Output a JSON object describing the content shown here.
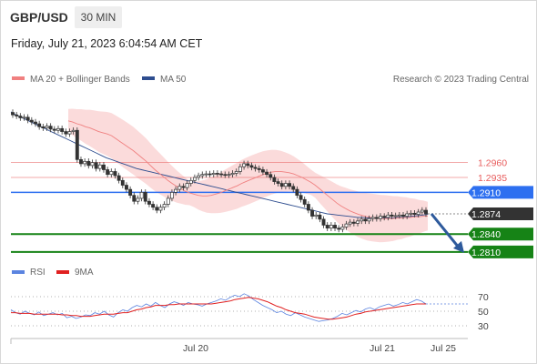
{
  "header": {
    "symbol": "GBP/USD",
    "timeframe": "30 MIN",
    "date": "Friday, July 21, 2023 6:04:54 AM CET"
  },
  "legend": {
    "ma20": "MA 20 + Bollinger Bands",
    "ma50": "MA 50",
    "credit": "Research © 2023 Trading Central",
    "rsi": "RSI",
    "rsi_ma": "9MA"
  },
  "colors": {
    "ma20": "#f08080",
    "bands": "#fbd7d7",
    "ma50": "#2e4d8f",
    "resistance": "#e85c5c",
    "pivot": "#2d6ff0",
    "support": "#168316",
    "last": "#333333",
    "arrow": "#2e5a9c",
    "rsi": "#5b84e0",
    "rsi_ma": "#e02020",
    "up_candle": "#ffffff",
    "down_candle": "#333333"
  },
  "chart_data": [
    {
      "type": "candlestick",
      "levels": [
        {
          "label": "1.2960",
          "value": 1.296,
          "kind": "resistance"
        },
        {
          "label": "1.2935",
          "value": 1.2935,
          "kind": "resistance"
        },
        {
          "label": "1.2910",
          "value": 1.291,
          "kind": "pivot"
        },
        {
          "label": "1.2874",
          "value": 1.2874,
          "kind": "last"
        },
        {
          "label": "1.2840",
          "value": 1.284,
          "kind": "support"
        },
        {
          "label": "1.2810",
          "value": 1.281,
          "kind": "support"
        }
      ],
      "ylim": [
        1.279,
        1.308
      ],
      "x_ticks": [
        "Jul 20",
        "Jul 21",
        "Jul 25"
      ],
      "close": [
        1.304,
        1.3038,
        1.3035,
        1.3036,
        1.3031,
        1.3028,
        1.3025,
        1.302,
        1.3018,
        1.3021,
        1.3016,
        1.3014,
        1.3017,
        1.3012,
        1.3008,
        1.3012,
        1.3014,
        1.2965,
        1.2958,
        1.2962,
        1.2955,
        1.296,
        1.295,
        1.2956,
        1.2948,
        1.294,
        1.2945,
        1.2938,
        1.293,
        1.2922,
        1.2915,
        1.2905,
        1.2895,
        1.29,
        1.291,
        1.2895,
        1.289,
        1.2885,
        1.288,
        1.2885,
        1.289,
        1.29,
        1.291,
        1.2915,
        1.292,
        1.2918,
        1.2925,
        1.293,
        1.2935,
        1.2938,
        1.294,
        1.2941,
        1.294,
        1.2942,
        1.2941,
        1.294,
        1.2939,
        1.294,
        1.2942,
        1.2945,
        1.2953,
        1.2958,
        1.2955,
        1.2952,
        1.295,
        1.2948,
        1.2944,
        1.294,
        1.2935,
        1.2928,
        1.2925,
        1.292,
        1.2925,
        1.292,
        1.2915,
        1.2905,
        1.2898,
        1.289,
        1.288,
        1.287,
        1.2872,
        1.2865,
        1.2855,
        1.285,
        1.2855,
        1.285,
        1.2848,
        1.2852,
        1.2857,
        1.286,
        1.2858,
        1.2862,
        1.2865,
        1.2862,
        1.2866,
        1.2868,
        1.2866,
        1.287,
        1.2868,
        1.2872,
        1.287,
        1.2871,
        1.2872,
        1.287,
        1.2874,
        1.2875,
        1.2873,
        1.2877,
        1.288,
        1.2874
      ],
      "ma20": [
        1.303,
        1.3028,
        1.3025,
        1.3023,
        1.302,
        1.3018,
        1.3015,
        1.3012,
        1.301,
        1.3008,
        1.3005,
        1.3,
        1.2995,
        1.299,
        1.2985,
        1.298,
        1.2974,
        1.2968,
        1.2962,
        1.2955,
        1.2948,
        1.2942,
        1.2936,
        1.293,
        1.2925,
        1.292,
        1.2916,
        1.2912,
        1.2909,
        1.2907,
        1.2905,
        1.2904,
        1.2904,
        1.2905,
        1.2907,
        1.2909,
        1.2912,
        1.2915,
        1.2918,
        1.2921,
        1.2925,
        1.2928,
        1.2931,
        1.2934,
        1.2937,
        1.294,
        1.2942,
        1.2944,
        1.2945,
        1.2945,
        1.2944,
        1.2943,
        1.2941,
        1.2938,
        1.2935,
        1.2931,
        1.2927,
        1.2922,
        1.2916,
        1.291,
        1.2904,
        1.2898,
        1.2892,
        1.2887,
        1.2883,
        1.2879,
        1.2876,
        1.2873,
        1.2871,
        1.2869,
        1.2868,
        1.2867,
        1.2866,
        1.2866,
        1.2866,
        1.2866,
        1.2867,
        1.2867,
        1.2868,
        1.2868,
        1.2869,
        1.2869,
        1.287,
        1.287
      ],
      "ma50": [
        1.3045,
        1.304,
        1.3036,
        1.3032,
        1.3028,
        1.3024,
        1.302,
        1.3016,
        1.3012,
        1.3008,
        1.3004,
        1.3,
        1.2996,
        1.2992,
        1.2988,
        1.2984,
        1.298,
        1.2976,
        1.2972,
        1.2968,
        1.2965,
        1.2962,
        1.2959,
        1.2956,
        1.2953,
        1.295,
        1.2948,
        1.2946,
        1.2944,
        1.2942,
        1.294,
        1.2938,
        1.2936,
        1.2934,
        1.2932,
        1.293,
        1.2928,
        1.2926,
        1.2924,
        1.2922,
        1.292,
        1.2918,
        1.2916,
        1.2914,
        1.2912,
        1.291,
        1.2908,
        1.2906,
        1.2904,
        1.2902,
        1.29,
        1.2898,
        1.2896,
        1.2894,
        1.2892,
        1.289,
        1.2888,
        1.2886,
        1.2884,
        1.2882,
        1.288,
        1.2878,
        1.2876,
        1.2874,
        1.2873,
        1.2872,
        1.2871,
        1.287,
        1.2869,
        1.2868,
        1.2868,
        1.2867,
        1.2867,
        1.2867,
        1.2867,
        1.2867,
        1.2867,
        1.2868,
        1.2868,
        1.2869,
        1.287,
        1.2871,
        1.2872,
        1.2873
      ]
    },
    {
      "type": "line",
      "series": [
        {
          "name": "RSI",
          "values": [
            52,
            48,
            46,
            50,
            47,
            45,
            49,
            44,
            46,
            48,
            45,
            47,
            41,
            43,
            40,
            42,
            45,
            44,
            48,
            46,
            50,
            45,
            42,
            48,
            52,
            50,
            55,
            58,
            56,
            60,
            57,
            62,
            58,
            55,
            60,
            63,
            61,
            58,
            62,
            60,
            59,
            57,
            60,
            62,
            64,
            67,
            65,
            69,
            72,
            70,
            74,
            71,
            66,
            62,
            58,
            55,
            52,
            48,
            50,
            46,
            44,
            48,
            45,
            42,
            40,
            38,
            36,
            37,
            38,
            40,
            43,
            47,
            45,
            48,
            51,
            49,
            53,
            55,
            52,
            56,
            58,
            60,
            57,
            59,
            62,
            60,
            63,
            66,
            64,
            60
          ]
        },
        {
          "name": "9MA",
          "values": [
            48,
            48,
            47,
            47,
            47,
            46,
            46,
            46,
            46,
            46,
            46,
            45,
            45,
            44,
            44,
            43,
            43,
            43,
            44,
            45,
            46,
            46,
            46,
            47,
            48,
            48,
            50,
            52,
            53,
            55,
            56,
            58,
            58,
            58,
            59,
            59,
            60,
            60,
            60,
            60,
            60,
            60,
            60,
            60,
            61,
            62,
            63,
            64,
            66,
            67,
            68,
            69,
            68,
            67,
            65,
            63,
            60,
            57,
            55,
            52,
            50,
            48,
            47,
            46,
            44,
            42,
            41,
            40,
            39,
            39,
            40,
            41,
            42,
            44,
            46,
            47,
            49,
            50,
            51,
            52,
            53,
            54,
            55,
            56,
            57,
            58,
            59,
            60,
            60,
            60
          ]
        }
      ],
      "y_ticks": [
        70,
        50,
        30
      ],
      "ylim": [
        20,
        80
      ]
    }
  ]
}
